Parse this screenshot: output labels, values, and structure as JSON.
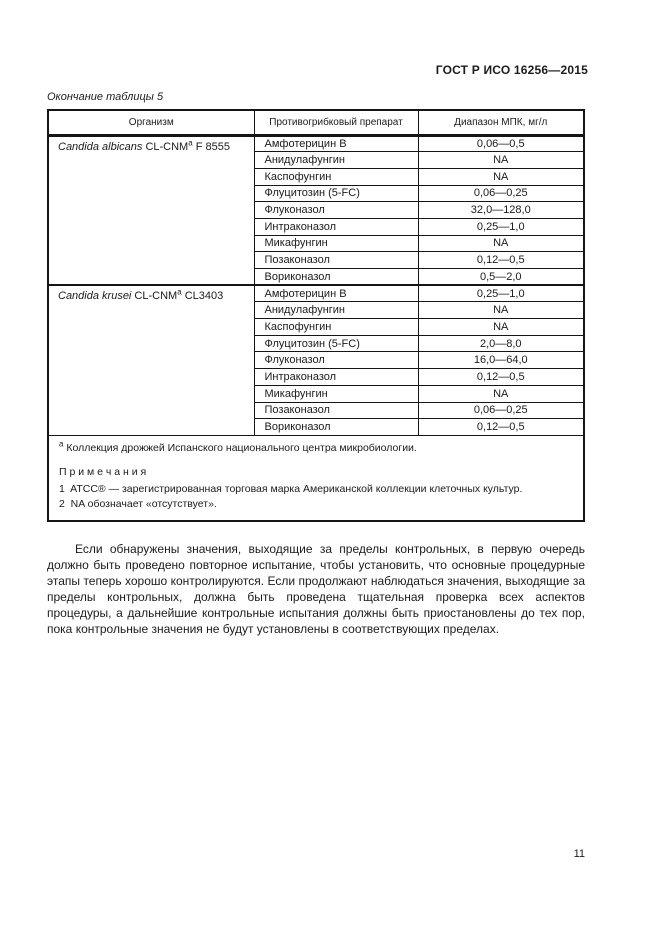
{
  "page": {
    "doc_header": "ГОСТ Р ИСО 16256—2015",
    "table_caption": "Окончание таблицы 5",
    "page_number": "11"
  },
  "table": {
    "columns": [
      "Организм",
      "Противогрибковый препарат",
      "Диапазон МПК, мг/л"
    ],
    "groups": [
      {
        "organism_name": "Candida albicans",
        "strain_prefix": "CL-CNM",
        "strain_sup": "a",
        "strain_suffix": "F 8555",
        "rows": [
          {
            "drug": "Амфотерицин В",
            "mic": "0,06—0,5"
          },
          {
            "drug": "Анидулафунгин",
            "mic": "NA"
          },
          {
            "drug": "Каспофунгин",
            "mic": "NA"
          },
          {
            "drug": "Флуцитозин (5-FC)",
            "mic": "0,06—0,25"
          },
          {
            "drug": "Флуконазол",
            "mic": "32,0—128,0"
          },
          {
            "drug": "Интраконазол",
            "mic": "0,25—1,0"
          },
          {
            "drug": "Микафунгин",
            "mic": "NA"
          },
          {
            "drug": "Позаконазол",
            "mic": "0,12—0,5"
          },
          {
            "drug": "Вориконазол",
            "mic": "0,5—2,0"
          }
        ]
      },
      {
        "organism_name": "Candida krusei",
        "strain_prefix": "CL-CNM",
        "strain_sup": "a",
        "strain_suffix": "CL3403",
        "rows": [
          {
            "drug": "Амфотерицин В",
            "mic": "0,25—1,0"
          },
          {
            "drug": "Анидулафунгин",
            "mic": "NA"
          },
          {
            "drug": "Каспофунгин",
            "mic": "NA"
          },
          {
            "drug": "Флуцитозин (5-FC)",
            "mic": "2,0—8,0"
          },
          {
            "drug": "Флуконазол",
            "mic": "16,0—64,0"
          },
          {
            "drug": "Интраконазол",
            "mic": "0,12—0,5"
          },
          {
            "drug": "Микафунгин",
            "mic": "NA"
          },
          {
            "drug": "Позаконазол",
            "mic": "0,06—0,25"
          },
          {
            "drug": "Вориконазол",
            "mic": "0,12—0,5"
          }
        ]
      }
    ],
    "footnote": {
      "sup": "a",
      "text": "Коллекция дрожжей Испанского национального центра микробиологии.",
      "notes_title": "П р и м е ч а н и я",
      "notes": [
        "1  ATCC® — зарегистрированная торговая марка Американской коллекции клеточных культур.",
        "2  NA обозначает «отсутствует»."
      ]
    }
  },
  "body_paragraph": "Если обнаружены значения, выходящие за пределы контрольных, в первую очередь должно быть проведено повторное испытание, чтобы установить, что основные процедурные этапы теперь хорошо контролируются. Если продолжают наблюдаться значения, выходящие за пределы контрольных, должна быть проведена тщательная проверка всех аспектов процедуры, а дальнейшие контрольные испытания должны быть приостановлены до тех пор, пока контрольные значения не будут установлены в соответствующих пределах.",
  "colors": {
    "text": "#1b1b1b",
    "border": "#151515",
    "background": "#ffffff"
  }
}
